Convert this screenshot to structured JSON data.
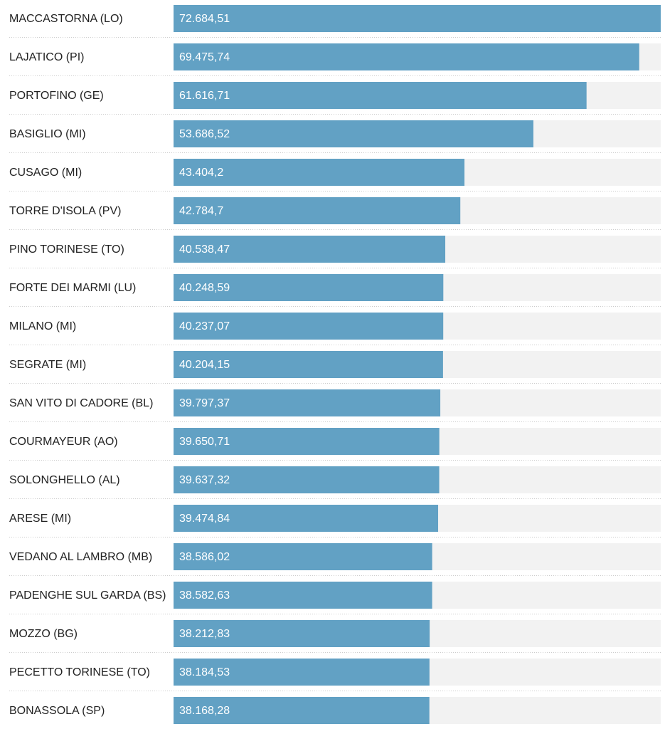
{
  "chart_data": {
    "type": "bar",
    "color": "#62a1c4",
    "categories": [
      "MACCASTORNA (LO)",
      "LAJATICO (PI)",
      "PORTOFINO (GE)",
      "BASIGLIO (MI)",
      "CUSAGO (MI)",
      "TORRE D'ISOLA (PV)",
      "PINO TORINESE (TO)",
      "FORTE DEI MARMI (LU)",
      "MILANO (MI)",
      "SEGRATE (MI)",
      "SAN VITO DI CADORE (BL)",
      "COURMAYEUR (AO)",
      "SOLONGHELLO (AL)",
      "ARESE (MI)",
      "VEDANO AL LAMBRO (MB)",
      "PADENGHE SUL GARDA (BS)",
      "MOZZO (BG)",
      "PECETTO TORINESE (TO)",
      "BONASSOLA (SP)"
    ],
    "values": [
      72684.51,
      69475.74,
      61616.71,
      53686.52,
      43404.2,
      42784.7,
      40538.47,
      40248.59,
      40237.07,
      40204.15,
      39797.37,
      39650.71,
      39637.32,
      39474.84,
      38586.02,
      38582.63,
      38212.83,
      38184.53,
      38168.28
    ],
    "value_labels": [
      "72.684,51",
      "69.475,74",
      "61.616,71",
      "53.686,52",
      "43.404,2",
      "42.784,7",
      "40.538,47",
      "40.248,59",
      "40.237,07",
      "40.204,15",
      "39.797,37",
      "39.650,71",
      "39.637,32",
      "39.474,84",
      "38.586,02",
      "38.582,63",
      "38.212,83",
      "38.184,53",
      "38.168,28"
    ]
  }
}
